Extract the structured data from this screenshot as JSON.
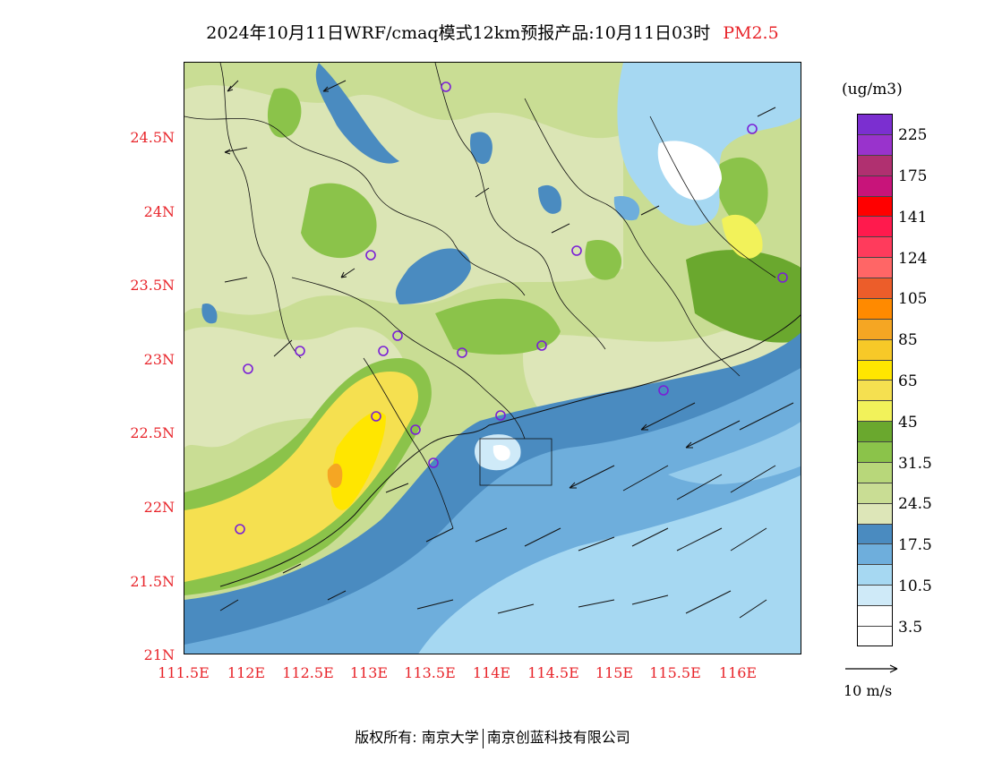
{
  "title": {
    "main": "2024年10月11日WRF/cmaq模式12km预报产品:10月11日03时",
    "species": "PM2.5"
  },
  "axes": {
    "y_labels": [
      "24.5N",
      "24N",
      "23.5N",
      "23N",
      "22.5N",
      "22N",
      "21.5N",
      "21N"
    ],
    "x_labels": [
      "111.5E",
      "112E",
      "112.5E",
      "113E",
      "113.5E",
      "114E",
      "114.5E",
      "115E",
      "115.5E",
      "116E"
    ],
    "label_color": "#e8242a"
  },
  "legend": {
    "unit": "(ug/m3)",
    "colors_top_to_bottom": [
      "#7b2fd0",
      "#9933cc",
      "#b03070",
      "#c8147a",
      "#ff0000",
      "#ff1a4d",
      "#ff3b5c",
      "#ff6666",
      "#ec5d2a",
      "#ff8a00",
      "#f5a623",
      "#f7c928",
      "#ffe600",
      "#f5e050",
      "#f2f25a",
      "#6aa82e",
      "#8bc34a",
      "#b8d77a",
      "#c9dd94",
      "#dde6b8",
      "#4a8bc0",
      "#6eaedc",
      "#a6d8f2",
      "#cfeaf8",
      "#ffffff"
    ],
    "labels": [
      "225",
      "175",
      "141",
      "124",
      "105",
      "85",
      "65",
      "45",
      "31.5",
      "24.5",
      "17.5",
      "10.5",
      "3.5"
    ]
  },
  "wind_reference": {
    "label": "10 m/s"
  },
  "footer": {
    "left": "版权所有: 南京大学",
    "right": "南京创蓝科技有限公司"
  }
}
